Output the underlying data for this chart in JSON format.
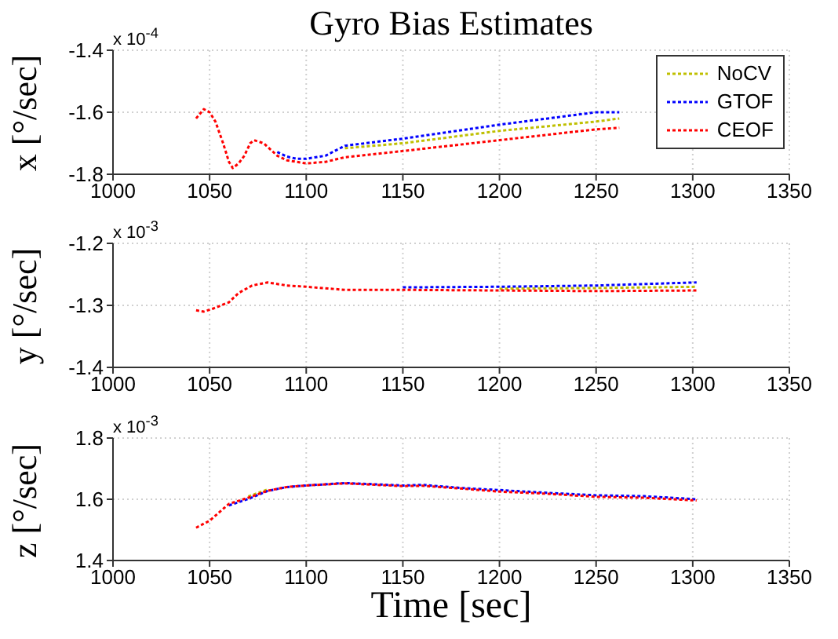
{
  "chart_data": [
    {
      "type": "line",
      "title": "Gyro Bias Estimates",
      "ylabel": "x [°/sec]",
      "annotations": [
        "x 10$^{-4}$"
      ],
      "x": [
        1043,
        1047,
        1050,
        1053,
        1057,
        1060,
        1062,
        1065,
        1068,
        1071,
        1073,
        1078,
        1085,
        1090,
        1095,
        1100,
        1110,
        1120,
        1150,
        1200,
        1250,
        1262
      ],
      "series": [
        {
          "name": "NoCV",
          "color": "#bfbf00",
          "values": [
            null,
            null,
            null,
            null,
            null,
            null,
            null,
            null,
            null,
            null,
            null,
            null,
            null,
            null,
            null,
            null,
            null,
            -1.716,
            -1.7,
            -1.66,
            -1.63,
            -1.62
          ]
        },
        {
          "name": "GTOF",
          "color": "#0000ff",
          "values": [
            null,
            null,
            null,
            null,
            null,
            null,
            null,
            null,
            null,
            null,
            null,
            null,
            -1.728,
            -1.743,
            -1.75,
            -1.75,
            -1.74,
            -1.708,
            -1.685,
            -1.64,
            -1.6,
            -1.6
          ]
        },
        {
          "name": "CEOF",
          "color": "#ff0000",
          "values": [
            -1.62,
            -1.59,
            -1.6,
            -1.63,
            -1.7,
            -1.76,
            -1.78,
            -1.765,
            -1.74,
            -1.7,
            -1.69,
            -1.7,
            -1.74,
            -1.755,
            -1.76,
            -1.765,
            -1.76,
            -1.745,
            -1.725,
            -1.69,
            -1.655,
            -1.65
          ]
        }
      ],
      "xlim": [
        1000,
        1350
      ],
      "xticks": [
        1000,
        1050,
        1100,
        1150,
        1200,
        1250,
        1300,
        1350
      ],
      "ylim": [
        -1.8,
        -1.4
      ],
      "yticks": [
        -1.8,
        -1.6,
        -1.4
      ],
      "grid": true,
      "legend": "top right",
      "line_style": "dotted",
      "marker": "none"
    },
    {
      "type": "line",
      "ylabel": "y [°/sec]",
      "annotations": [
        "x 10$^{-3}$"
      ],
      "x": [
        1043,
        1047,
        1052,
        1060,
        1065,
        1072,
        1080,
        1090,
        1100,
        1120,
        1150,
        1200,
        1250,
        1302
      ],
      "series": [
        {
          "color": "#bfbf00",
          "values": [
            null,
            null,
            null,
            null,
            null,
            null,
            null,
            null,
            null,
            null,
            null,
            -1.273,
            -1.272,
            -1.27
          ]
        },
        {
          "color": "#0000ff",
          "values": [
            null,
            null,
            null,
            null,
            null,
            null,
            null,
            null,
            null,
            null,
            -1.271,
            -1.27,
            -1.268,
            -1.263
          ]
        },
        {
          "color": "#ff0000",
          "values": [
            -1.308,
            -1.31,
            -1.305,
            -1.295,
            -1.28,
            -1.268,
            -1.263,
            -1.268,
            -1.27,
            -1.275,
            -1.275,
            -1.276,
            -1.277,
            -1.276
          ]
        }
      ],
      "xlim": [
        1000,
        1350
      ],
      "xticks": [
        1000,
        1050,
        1100,
        1150,
        1200,
        1250,
        1300,
        1350
      ],
      "ylim": [
        -1.4,
        -1.2
      ],
      "yticks": [
        -1.4,
        -1.3,
        -1.2
      ],
      "grid": true,
      "line_style": "dotted",
      "marker": "none"
    },
    {
      "type": "line",
      "ylabel": "z [°/sec]",
      "xlabel": "Time [sec]",
      "annotations": [
        "x 10$^{-3}$"
      ],
      "x": [
        1043,
        1050,
        1060,
        1070,
        1080,
        1090,
        1100,
        1120,
        1150,
        1160,
        1180,
        1200,
        1225,
        1250,
        1275,
        1302
      ],
      "series": [
        {
          "color": "#bfbf00",
          "values": [
            null,
            null,
            null,
            1.609,
            1.632,
            null,
            null,
            null,
            null,
            null,
            null,
            null,
            null,
            null,
            null,
            null
          ]
        },
        {
          "color": "#0000ff",
          "values": [
            null,
            null,
            1.58,
            1.601,
            1.627,
            1.64,
            1.645,
            1.653,
            1.645,
            1.647,
            1.637,
            1.63,
            1.621,
            1.613,
            1.61,
            1.6
          ]
        },
        {
          "color": "#ff0000",
          "values": [
            1.507,
            1.53,
            1.585,
            1.605,
            1.628,
            1.64,
            1.645,
            1.652,
            1.643,
            1.644,
            1.635,
            1.625,
            1.618,
            1.608,
            1.605,
            1.596
          ]
        }
      ],
      "xlim": [
        1000,
        1350
      ],
      "xticks": [
        1000,
        1050,
        1100,
        1150,
        1200,
        1250,
        1300,
        1350
      ],
      "ylim": [
        1.4,
        1.8
      ],
      "yticks": [
        1.4,
        1.6,
        1.8
      ],
      "grid": true,
      "line_style": "dotted",
      "marker": "none"
    }
  ]
}
